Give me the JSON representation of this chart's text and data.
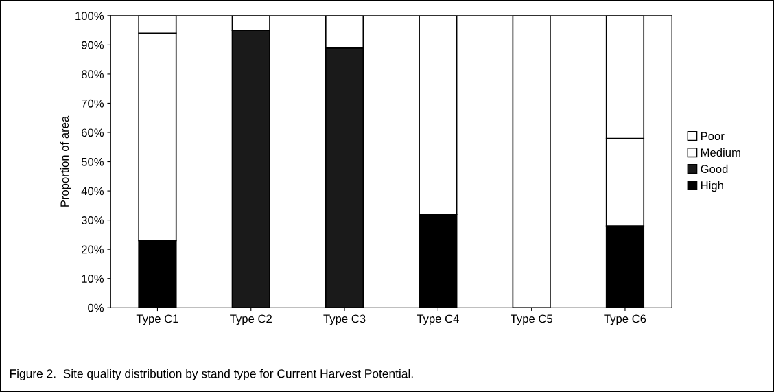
{
  "chart_data": {
    "type": "bar",
    "stacked": true,
    "ylabel": "Proportion of area",
    "categories": [
      "Type C1",
      "Type C2",
      "Type C3",
      "Type C4",
      "Type C5",
      "Type C6"
    ],
    "series": [
      {
        "name": "High",
        "color": "#000000",
        "values": [
          23,
          0,
          0,
          32,
          0,
          28
        ]
      },
      {
        "name": "Good",
        "color": "#1a1a1a",
        "values": [
          0,
          95,
          89,
          0,
          0,
          0
        ]
      },
      {
        "name": "Medium",
        "color": "#ffffff",
        "values": [
          71,
          0,
          0,
          0,
          0,
          30
        ]
      },
      {
        "name": "Poor",
        "color": "#ffffff",
        "values": [
          6,
          5,
          11,
          68,
          100,
          42
        ]
      }
    ],
    "ylim": [
      0,
      100
    ],
    "yticks": [
      {
        "value": 0,
        "label": "0%"
      },
      {
        "value": 10,
        "label": "10%"
      },
      {
        "value": 20,
        "label": "20%"
      },
      {
        "value": 30,
        "label": "30%"
      },
      {
        "value": 40,
        "label": "40%"
      },
      {
        "value": 50,
        "label": "50%"
      },
      {
        "value": 60,
        "label": "60%"
      },
      {
        "value": 70,
        "label": "70%"
      },
      {
        "value": 80,
        "label": "80%"
      },
      {
        "value": 90,
        "label": "90%"
      },
      {
        "value": 100,
        "label": "100%"
      }
    ],
    "legend": "right",
    "annotations": [
      "Figure 2.  Site quality distribution by stand type for Current Harvest Potential."
    ]
  }
}
